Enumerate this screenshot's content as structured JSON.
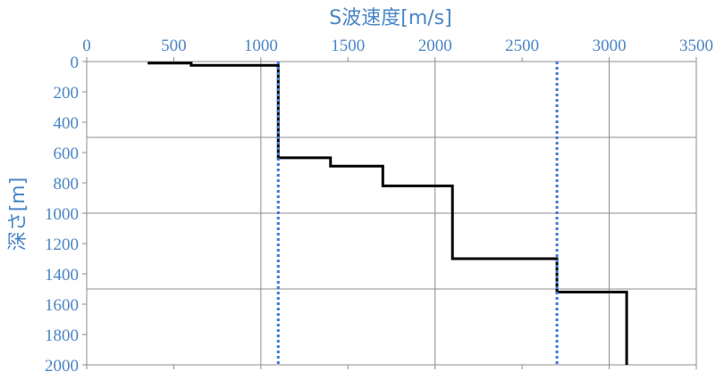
{
  "chart_data": {
    "type": "line",
    "title": "",
    "xlabel": "S波速度[m/s]",
    "ylabel": "深さ[m]",
    "x_axis_position": "top",
    "y_axis_inverted": true,
    "xlim": [
      0,
      3500
    ],
    "ylim": [
      0,
      2000
    ],
    "x_ticks": [
      "0",
      "500",
      "1000",
      "1500",
      "2000",
      "2500",
      "3000",
      "3500"
    ],
    "y_ticks": [
      "0",
      "200",
      "400",
      "600",
      "800",
      "1000",
      "1200",
      "1400",
      "1600",
      "1800",
      "2000"
    ],
    "x_tick_values": [
      0,
      500,
      1000,
      1500,
      2000,
      2500,
      3000,
      3500
    ],
    "y_tick_values": [
      0,
      200,
      400,
      600,
      800,
      1000,
      1200,
      1400,
      1600,
      1800,
      2000
    ],
    "x_grid_values": [
      1000,
      2000,
      3000,
      3500
    ],
    "y_grid_values": [
      500,
      1000,
      1500
    ],
    "grid": true,
    "colors": {
      "profile": "#000000",
      "reference_lines": "#3d78d8",
      "text": "#4a86c5",
      "grid": "#8c8c8c"
    },
    "series": [
      {
        "style": "step-solid",
        "points": [
          [
            350,
            10
          ],
          [
            600,
            10
          ],
          [
            600,
            25
          ],
          [
            1100,
            25
          ],
          [
            1100,
            635
          ],
          [
            1400,
            635
          ],
          [
            1400,
            690
          ],
          [
            1700,
            690
          ],
          [
            1700,
            820
          ],
          [
            2100,
            820
          ],
          [
            2100,
            1300
          ],
          [
            2700,
            1300
          ],
          [
            2700,
            1520
          ],
          [
            3100,
            1520
          ],
          [
            3100,
            2000
          ]
        ]
      },
      {
        "style": "dotted-vertical",
        "points": [
          [
            1100,
            0
          ],
          [
            1100,
            2000
          ]
        ]
      },
      {
        "style": "dotted-vertical",
        "points": [
          [
            2700,
            0
          ],
          [
            2700,
            2000
          ]
        ]
      }
    ]
  }
}
